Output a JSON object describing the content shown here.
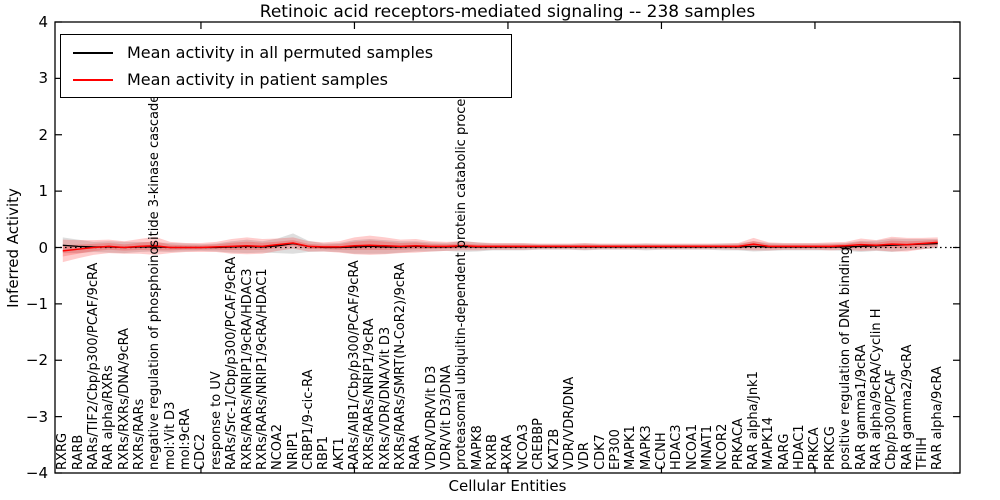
{
  "figure": {
    "title": "Retinoic acid receptors-mediated signaling -- 238 samples",
    "background_color": "#ffffff",
    "frame_color": "#000000"
  },
  "legend": {
    "position": "upper left",
    "items": [
      {
        "label": "Mean activity in all permuted samples",
        "color": "#000000"
      },
      {
        "label": "Mean activity in patient samples",
        "color": "#ff0000"
      }
    ]
  },
  "chart_data": {
    "type": "line",
    "title": "Retinoic acid receptors-mediated signaling -- 238 samples",
    "xlabel": "Cellular Entities",
    "ylabel": "Inferred Activity",
    "ylim": [
      -4,
      4
    ],
    "ytick_labels": [
      "4",
      "3",
      "2",
      "1",
      "0",
      "−1",
      "−2",
      "−3",
      "−4"
    ],
    "ytick_values": [
      4,
      3,
      2,
      1,
      0,
      -1,
      -2,
      -3,
      -4
    ],
    "grid": false,
    "legend_position": "upper left",
    "zero_line": {
      "style": "dotted",
      "color": "#000000",
      "y": 0
    },
    "categories": [
      "RXRG",
      "RARB",
      "RARs/TIF2/Cbp/p300/PCAF/9cRA",
      "RAR alpha/RXRs",
      "RXRs/RXRs/DNA/9cRA",
      "RXRs/RARs",
      "negative regulation of phosphoinositide 3-kinase cascade",
      "mol:Vit D3",
      "mol:9cRA",
      "CDC2",
      "response to UV",
      "RARs/Src-1/Cbp/p300/PCAF/9cRA",
      "RXRs/RARs/NRIP1/9cRA/HDAC3",
      "RXRs/RARs/NRIP1/9cRA/HDAC1",
      "NCOA2",
      "NRIP1",
      "CRBP1/9-cic-RA",
      "RBP1",
      "AKT1",
      "RARs/AIB1/Cbp/p300/PCAF/9cRA",
      "RXRs/RARs/NRIP1/9cRA",
      "RXRs/VDR/DNA/Vit D3",
      "RXRs/RARs/SMRT(N-CoR2)/9cRA",
      "RARA",
      "VDR/VDR/Vit D3",
      "VDR/Vit D3/DNA",
      "proteasomal ubiquitin-dependent protein catabolic process",
      "MAPK8",
      "RXRB",
      "RXRA",
      "NCOA3",
      "CREBBP",
      "KAT2B",
      "VDR/VDR/DNA",
      "VDR",
      "CDK7",
      "EP300",
      "MAPK1",
      "MAPK3",
      "CCNH",
      "HDAC3",
      "NCOA1",
      "MNAT1",
      "NCOR2",
      "PRKACA",
      "RAR alpha/Jnk1",
      "MAPK14",
      "RARG",
      "HDAC1",
      "PRKCA",
      "PRKCG",
      "positive regulation of DNA binding",
      "RAR gamma1/9cRA",
      "RAR alpha/9cRA/Cyclin H",
      "Cbp/p300/PCAF",
      "RAR gamma2/9cRA",
      "TFIIH",
      "RAR alpha/9cRA"
    ],
    "series": [
      {
        "name": "Mean activity in all permuted samples",
        "color": "#000000",
        "band_color": "#000000",
        "band_opacity": 0.13,
        "values": [
          0.04,
          0.02,
          0.01,
          0.01,
          0.0,
          0.01,
          0.01,
          0.0,
          0.0,
          0.0,
          0.0,
          0.01,
          0.02,
          0.01,
          0.03,
          0.07,
          0.02,
          0.0,
          0.0,
          0.01,
          0.02,
          0.01,
          0.01,
          0.02,
          0.01,
          0.01,
          0.02,
          0.01,
          0.01,
          0.01,
          0.01,
          0.01,
          0.01,
          0.01,
          0.01,
          0.01,
          0.01,
          0.01,
          0.01,
          0.01,
          0.01,
          0.01,
          0.01,
          0.01,
          0.01,
          0.02,
          0.01,
          0.01,
          0.01,
          0.01,
          0.01,
          0.01,
          0.02,
          0.03,
          0.04,
          0.05,
          0.06,
          0.07
        ],
        "band_halfwidth": [
          0.14,
          0.12,
          0.09,
          0.1,
          0.1,
          0.09,
          0.08,
          0.08,
          0.07,
          0.06,
          0.07,
          0.1,
          0.12,
          0.1,
          0.13,
          0.18,
          0.1,
          0.07,
          0.08,
          0.12,
          0.13,
          0.12,
          0.1,
          0.09,
          0.08,
          0.07,
          0.1,
          0.08,
          0.06,
          0.06,
          0.06,
          0.05,
          0.05,
          0.05,
          0.06,
          0.05,
          0.05,
          0.05,
          0.06,
          0.05,
          0.05,
          0.05,
          0.05,
          0.06,
          0.06,
          0.09,
          0.07,
          0.06,
          0.06,
          0.06,
          0.06,
          0.07,
          0.1,
          0.09,
          0.12,
          0.1,
          0.09,
          0.08
        ]
      },
      {
        "name": "Mean activity in patient samples",
        "color": "#ff0000",
        "band_color": "#ff0000",
        "band_opacity": 0.2,
        "values": [
          -0.06,
          -0.03,
          0.0,
          0.02,
          0.0,
          0.02,
          0.03,
          0.0,
          0.0,
          0.0,
          0.01,
          0.02,
          0.03,
          0.02,
          0.05,
          0.08,
          0.02,
          0.01,
          0.01,
          0.03,
          0.04,
          0.03,
          0.02,
          0.03,
          0.02,
          0.02,
          0.03,
          0.02,
          0.02,
          0.02,
          0.02,
          0.02,
          0.02,
          0.02,
          0.02,
          0.02,
          0.02,
          0.02,
          0.02,
          0.02,
          0.02,
          0.02,
          0.02,
          0.02,
          0.02,
          0.06,
          0.02,
          0.02,
          0.02,
          0.02,
          0.02,
          0.03,
          0.05,
          0.04,
          0.06,
          0.05,
          0.07,
          0.09
        ],
        "band_halfwidth": [
          0.2,
          0.16,
          0.13,
          0.12,
          0.11,
          0.13,
          0.16,
          0.1,
          0.08,
          0.08,
          0.09,
          0.13,
          0.15,
          0.13,
          0.11,
          0.1,
          0.09,
          0.08,
          0.1,
          0.15,
          0.17,
          0.15,
          0.12,
          0.12,
          0.09,
          0.08,
          0.08,
          0.07,
          0.06,
          0.06,
          0.06,
          0.05,
          0.05,
          0.05,
          0.06,
          0.05,
          0.05,
          0.05,
          0.05,
          0.05,
          0.05,
          0.05,
          0.05,
          0.05,
          0.06,
          0.11,
          0.07,
          0.06,
          0.06,
          0.06,
          0.07,
          0.07,
          0.11,
          0.09,
          0.13,
          0.12,
          0.1,
          0.09
        ]
      }
    ]
  }
}
